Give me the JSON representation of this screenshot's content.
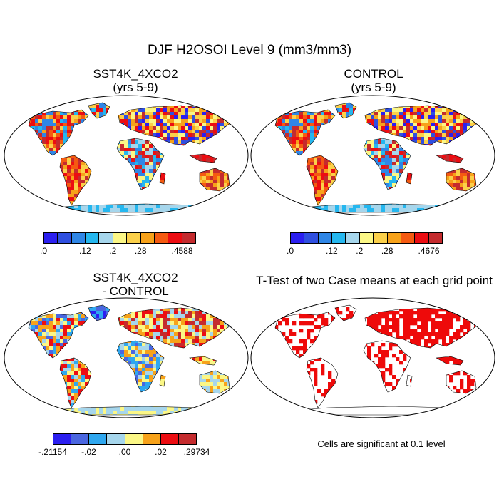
{
  "title": "DJF H2OSOI Level 9 (mm3/mm3)",
  "panels": [
    {
      "id": "case",
      "title_line1": "SST4K_4XCO2",
      "title_line2": "(yrs 5-9)",
      "colorbar": {
        "labels": [
          ".0",
          ".12",
          ".2",
          ".28",
          ".4588"
        ],
        "label_positions": [
          0,
          3,
          5,
          7,
          10
        ],
        "colors": [
          "#2b1ff0",
          "#2f4fe0",
          "#2f86e6",
          "#25b7ef",
          "#a6d6ec",
          "#fbf786",
          "#fbd04a",
          "#f7a21a",
          "#f55a11",
          "#ec0d12",
          "#c42b2e"
        ]
      }
    },
    {
      "id": "control",
      "title_line1": "CONTROL",
      "title_line2": "(yrs 5-9)",
      "colorbar": {
        "labels": [
          ".0",
          ".12",
          ".2",
          ".28",
          ".4676"
        ],
        "label_positions": [
          0,
          3,
          5,
          7,
          10
        ],
        "colors": [
          "#2b1ff0",
          "#2f4fe0",
          "#2f86e6",
          "#25b7ef",
          "#a6d6ec",
          "#fbf786",
          "#fbd04a",
          "#f7a21a",
          "#f55a11",
          "#ec0d12",
          "#c42b2e"
        ]
      }
    },
    {
      "id": "diff",
      "title_line1": "SST4K_4XCO2",
      "title_line2": "- CONTROL",
      "colorbar": {
        "labels": [
          "-.21154",
          "-.02",
          ".00",
          ".02",
          ".29734"
        ],
        "label_positions": [
          0,
          2,
          4,
          6,
          8
        ],
        "colors": [
          "#2b1ff0",
          "#4a66e0",
          "#2fa7ef",
          "#a6d6ec",
          "#fbf786",
          "#f7a21a",
          "#ec0d12",
          "#c42b2e"
        ]
      }
    },
    {
      "id": "ttest",
      "title": "T-Test of two Case means at each grid point",
      "note": "Cells are significant at 0.1 level",
      "significant_color": "#ee0a0a"
    }
  ],
  "map": {
    "projection": "robinson",
    "land_color": "#ffffff",
    "outline_color": "#000000"
  }
}
